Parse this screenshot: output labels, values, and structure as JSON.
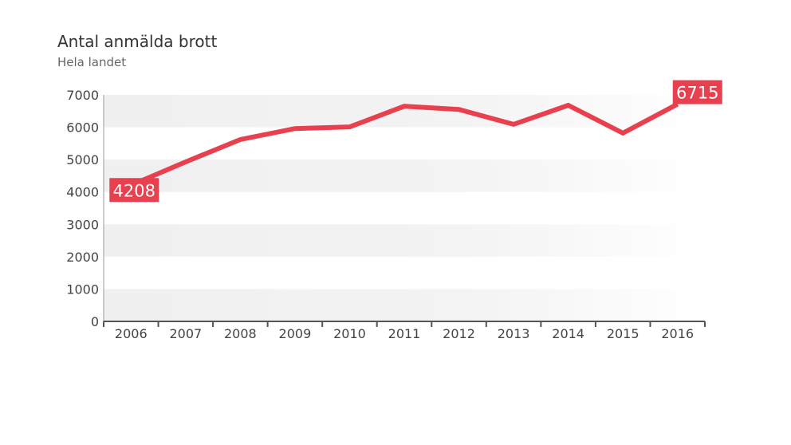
{
  "chart_data": {
    "type": "line",
    "title": "Antal anmälda brott",
    "subtitle": "Hela landet",
    "xlabel": "",
    "ylabel": "",
    "x": [
      "2006",
      "2007",
      "2008",
      "2009",
      "2010",
      "2011",
      "2012",
      "2013",
      "2014",
      "2015",
      "2016"
    ],
    "series": [
      {
        "name": "Antal anmälda brott",
        "values": [
          4208,
          4930,
          5620,
          5960,
          6010,
          6650,
          6550,
          6090,
          6680,
          5820,
          6715
        ]
      }
    ],
    "ylim": [
      0,
      7000
    ],
    "yticks": [
      "0",
      "1000",
      "2000",
      "3000",
      "4000",
      "5000",
      "6000",
      "7000"
    ],
    "data_labels": [
      "4208",
      "6715"
    ],
    "colors": {
      "line": "#e8404f",
      "band": "#f2f2f2"
    }
  }
}
